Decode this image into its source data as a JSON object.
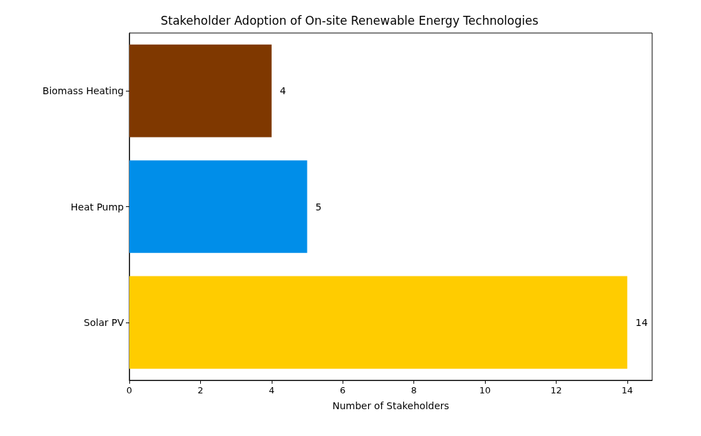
{
  "chart_data": {
    "type": "bar",
    "orientation": "horizontal",
    "title": "Stakeholder Adoption of On-site Renewable Energy Technologies",
    "xlabel": "Number of Stakeholders",
    "categories": [
      "Biomass Heating",
      "Heat Pump",
      "Solar PV"
    ],
    "values": [
      4,
      5,
      14
    ],
    "colors": [
      "#7f3800",
      "#008ee9",
      "#ffcc00"
    ],
    "xlim": [
      0,
      14.7
    ],
    "xticks": [
      0,
      2,
      4,
      6,
      8,
      10,
      12,
      14
    ],
    "data_labels": true,
    "grid": false
  }
}
